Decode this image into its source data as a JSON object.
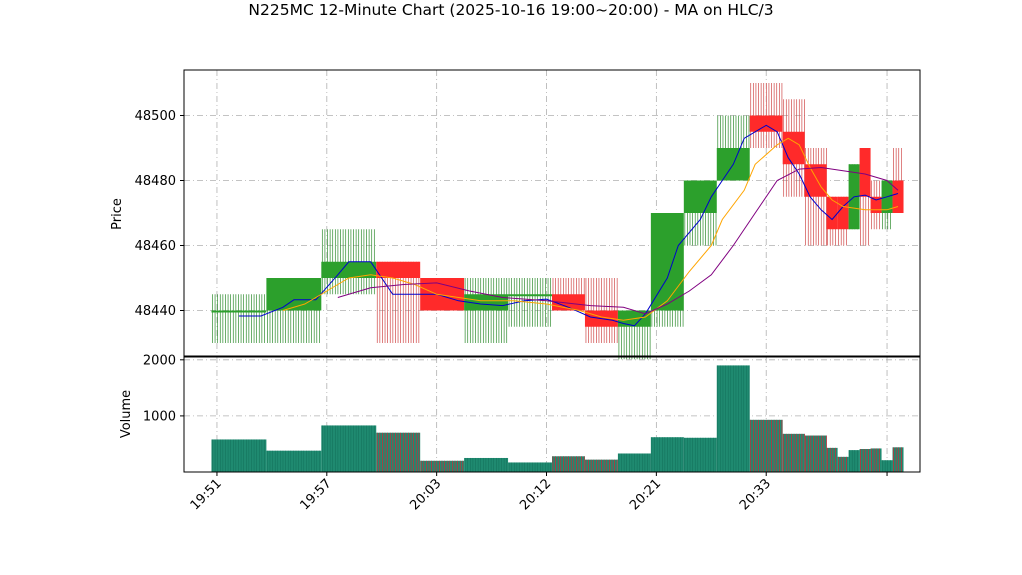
{
  "chart_data": {
    "type": "candlestick",
    "title": "N225MC 12-Minute Chart (2025-10-16 19:00~20:00) - MA on HLC/3",
    "price_panel": {
      "ylabel": "Price",
      "ylim": [
        48426,
        48514
      ],
      "yticks": [
        48440,
        48460,
        48480,
        48500
      ],
      "grid": true
    },
    "volume_panel": {
      "ylabel": "Volume",
      "ylim": [
        0,
        2050
      ],
      "yticks": [
        1000,
        2000
      ],
      "grid": true
    },
    "xlim": [
      -2,
      65
    ],
    "xticks": [
      {
        "x": 1,
        "label": "19:51"
      },
      {
        "x": 11,
        "label": "19:57"
      },
      {
        "x": 21,
        "label": "20:03"
      },
      {
        "x": 31,
        "label": "20:12"
      },
      {
        "x": 41,
        "label": "20:21"
      },
      {
        "x": 51,
        "label": "20:33"
      },
      {
        "x": 62,
        "label": ""
      }
    ],
    "colors": {
      "up": "#2ca02c",
      "down": "#ff2a2a",
      "up_wick": "#2e8b2e",
      "down_wick": "#d04848",
      "ma_fast": "#0000cc",
      "ma_mid": "#ffa500",
      "ma_slow": "#800080",
      "vol_fill": "#1f8a70",
      "vol_stripe_down": "#c0303a"
    },
    "candles": [
      {
        "x0": 1,
        "x1": 5,
        "open": 48440,
        "high": 48445,
        "low": 48430,
        "close": 48440,
        "volume": 580
      },
      {
        "x0": 6,
        "x1": 10,
        "open": 48440,
        "high": 48450,
        "low": 48430,
        "close": 48450,
        "volume": 380
      },
      {
        "x0": 11,
        "x1": 15,
        "open": 48450,
        "high": 48465,
        "low": 48445,
        "close": 48455,
        "volume": 830
      },
      {
        "x0": 16,
        "x1": 19,
        "open": 48455,
        "high": 48455,
        "low": 48430,
        "close": 48450,
        "volume": 700
      },
      {
        "x0": 20,
        "x1": 23,
        "open": 48450,
        "high": 48450,
        "low": 48440,
        "close": 48440,
        "volume": 200
      },
      {
        "x0": 24,
        "x1": 27,
        "open": 48440,
        "high": 48450,
        "low": 48430,
        "close": 48445,
        "volume": 250
      },
      {
        "x0": 28,
        "x1": 31,
        "open": 48445,
        "high": 48450,
        "low": 48435,
        "close": 48445,
        "volume": 170
      },
      {
        "x0": 32,
        "x1": 34,
        "open": 48445,
        "high": 48450,
        "low": 48440,
        "close": 48440,
        "volume": 280
      },
      {
        "x0": 35,
        "x1": 37,
        "open": 48440,
        "high": 48450,
        "low": 48430,
        "close": 48435,
        "volume": 220
      },
      {
        "x0": 38,
        "x1": 40,
        "open": 48435,
        "high": 48440,
        "low": 48425,
        "close": 48440,
        "volume": 330
      },
      {
        "x0": 41,
        "x1": 43,
        "open": 48440,
        "high": 48470,
        "low": 48435,
        "close": 48470,
        "volume": 620
      },
      {
        "x0": 44,
        "x1": 46,
        "open": 48470,
        "high": 48480,
        "low": 48460,
        "close": 48480,
        "volume": 610
      },
      {
        "x0": 47,
        "x1": 49,
        "open": 48480,
        "high": 48500,
        "low": 48480,
        "close": 48490,
        "volume": 1900
      },
      {
        "x0": 50,
        "x1": 52,
        "open": 48500,
        "high": 48510,
        "low": 48490,
        "close": 48495,
        "volume": 930
      },
      {
        "x0": 53,
        "x1": 54,
        "open": 48495,
        "high": 48505,
        "low": 48475,
        "close": 48485,
        "volume": 680
      },
      {
        "x0": 55,
        "x1": 56,
        "open": 48485,
        "high": 48490,
        "low": 48460,
        "close": 48475,
        "volume": 650
      },
      {
        "x0": 57,
        "x1": 57,
        "open": 48475,
        "high": 48475,
        "low": 48460,
        "close": 48465,
        "volume": 430
      },
      {
        "x0": 58,
        "x1": 58,
        "open": 48475,
        "high": 48475,
        "low": 48460,
        "close": 48465,
        "volume": 270
      },
      {
        "x0": 59,
        "x1": 59,
        "open": 48465,
        "high": 48485,
        "low": 48465,
        "close": 48485,
        "volume": 390
      },
      {
        "x0": 60,
        "x1": 60,
        "open": 48490,
        "high": 48490,
        "low": 48460,
        "close": 48475,
        "volume": 410
      },
      {
        "x0": 61,
        "x1": 61,
        "open": 48475,
        "high": 48480,
        "low": 48465,
        "close": 48470,
        "volume": 420
      },
      {
        "x0": 62,
        "x1": 62,
        "open": 48470,
        "high": 48480,
        "low": 48465,
        "close": 48480,
        "volume": 210
      },
      {
        "x0": 63,
        "x1": 63,
        "open": 48480,
        "high": 48490,
        "low": 48470,
        "close": 48470,
        "volume": 440
      }
    ],
    "moving_averages": [
      {
        "key": "fast",
        "color": "#0000cc",
        "points": [
          [
            3,
            48438.3
          ],
          [
            5,
            48438.3
          ],
          [
            7,
            48441
          ],
          [
            8,
            48443.3
          ],
          [
            10,
            48443.3
          ],
          [
            12,
            48451
          ],
          [
            13,
            48455
          ],
          [
            15,
            48455
          ],
          [
            17,
            48445
          ],
          [
            19,
            48445
          ],
          [
            21,
            48445
          ],
          [
            23,
            48443
          ],
          [
            25,
            48442
          ],
          [
            27,
            48441.5
          ],
          [
            29,
            48443
          ],
          [
            31,
            48443.5
          ],
          [
            33,
            48441
          ],
          [
            35,
            48438
          ],
          [
            37,
            48437
          ],
          [
            38,
            48436
          ],
          [
            39,
            48435.3
          ],
          [
            40,
            48439
          ],
          [
            42,
            48450
          ],
          [
            43,
            48460
          ],
          [
            45,
            48468
          ],
          [
            46,
            48475
          ],
          [
            47,
            48480
          ],
          [
            48,
            48485
          ],
          [
            49,
            48493
          ],
          [
            50,
            48495
          ],
          [
            51,
            48497
          ],
          [
            52,
            48495
          ],
          [
            53,
            48487
          ],
          [
            54,
            48482
          ],
          [
            55,
            48475
          ],
          [
            56,
            48471
          ],
          [
            57,
            48468
          ],
          [
            58,
            48472
          ],
          [
            59,
            48475
          ],
          [
            60,
            48475.5
          ],
          [
            61,
            48474
          ],
          [
            62,
            48475
          ],
          [
            63,
            48476
          ]
        ]
      },
      {
        "key": "mid",
        "color": "#ffa500",
        "points": [
          [
            7,
            48440
          ],
          [
            9,
            48442
          ],
          [
            11,
            48446
          ],
          [
            13,
            48450
          ],
          [
            15,
            48451
          ],
          [
            17,
            48450
          ],
          [
            19,
            48448
          ],
          [
            21,
            48445
          ],
          [
            25,
            48443
          ],
          [
            28,
            48443
          ],
          [
            31,
            48442
          ],
          [
            34,
            48440
          ],
          [
            36,
            48438
          ],
          [
            38,
            48437
          ],
          [
            40,
            48438
          ],
          [
            42,
            48443
          ],
          [
            44,
            48452
          ],
          [
            46,
            48460
          ],
          [
            47,
            48468
          ],
          [
            49,
            48477
          ],
          [
            50,
            48485
          ],
          [
            52,
            48491
          ],
          [
            53,
            48493
          ],
          [
            54,
            48491
          ],
          [
            55,
            48484
          ],
          [
            56,
            48478
          ],
          [
            57,
            48474
          ],
          [
            58,
            48472
          ],
          [
            60,
            48471
          ],
          [
            62,
            48471
          ],
          [
            63,
            48472
          ]
        ]
      },
      {
        "key": "slow",
        "color": "#800080",
        "points": [
          [
            12,
            48444
          ],
          [
            15,
            48447
          ],
          [
            18,
            48448
          ],
          [
            21,
            48448.5
          ],
          [
            24,
            48446
          ],
          [
            27,
            48444
          ],
          [
            31,
            48443
          ],
          [
            35,
            48441.5
          ],
          [
            38,
            48441
          ],
          [
            40,
            48439
          ],
          [
            42,
            48442
          ],
          [
            44,
            48446
          ],
          [
            46,
            48451
          ],
          [
            48,
            48460
          ],
          [
            50,
            48470
          ],
          [
            52,
            48480
          ],
          [
            54,
            48483.5
          ],
          [
            56,
            48484
          ],
          [
            58,
            48483
          ],
          [
            60,
            48482
          ],
          [
            62,
            48480
          ],
          [
            63,
            48477
          ]
        ]
      }
    ]
  }
}
